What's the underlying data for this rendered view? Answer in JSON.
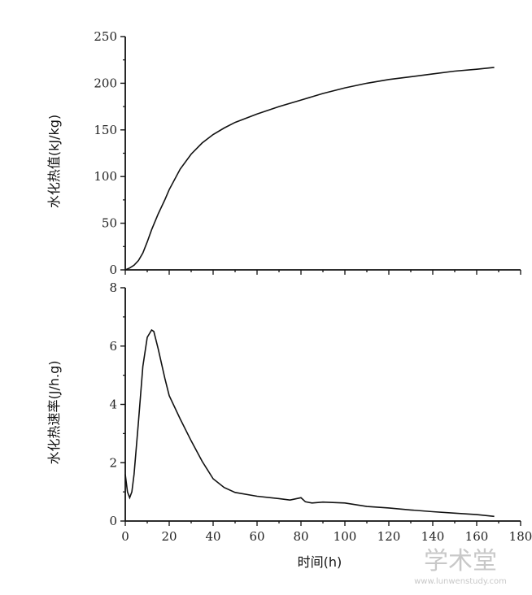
{
  "chart_data": [
    {
      "type": "line",
      "ylabel": "水化热值(kJ/kg)",
      "xlim": [
        0,
        180
      ],
      "ylim": [
        0,
        250
      ],
      "yticks": [
        "0",
        "50",
        "100",
        "150",
        "200",
        "250"
      ],
      "series": [
        {
          "color": "#111111",
          "x": [
            0,
            2,
            4,
            6,
            8,
            10,
            12,
            15,
            18,
            20,
            25,
            30,
            35,
            40,
            45,
            50,
            60,
            70,
            80,
            90,
            100,
            110,
            120,
            130,
            140,
            150,
            160,
            168
          ],
          "y": [
            0,
            2,
            5,
            10,
            18,
            30,
            43,
            60,
            75,
            86,
            108,
            124,
            136,
            145,
            152,
            158,
            167,
            175,
            182,
            189,
            195,
            200,
            204,
            207,
            210,
            213,
            215,
            217
          ]
        }
      ]
    },
    {
      "type": "line",
      "xlabel": "时间(h)",
      "ylabel": "水化热速率(J/h.g)",
      "xlim": [
        0,
        180
      ],
      "ylim": [
        0,
        8
      ],
      "xticks": [
        "0",
        "20",
        "40",
        "60",
        "80",
        "100",
        "120",
        "140",
        "160",
        "180"
      ],
      "yticks": [
        "0",
        "2",
        "4",
        "6",
        "8"
      ],
      "series": [
        {
          "color": "#111111",
          "x": [
            0,
            1,
            2,
            3,
            4,
            6,
            8,
            10,
            12,
            13,
            15,
            18,
            20,
            25,
            30,
            35,
            40,
            45,
            50,
            60,
            70,
            75,
            80,
            82,
            85,
            90,
            100,
            110,
            120,
            130,
            140,
            150,
            160,
            168
          ],
          "y": [
            1.6,
            1.0,
            0.8,
            1.0,
            1.6,
            3.4,
            5.3,
            6.3,
            6.55,
            6.5,
            5.9,
            4.9,
            4.3,
            3.5,
            2.75,
            2.05,
            1.45,
            1.15,
            0.98,
            0.85,
            0.77,
            0.72,
            0.8,
            0.66,
            0.62,
            0.65,
            0.62,
            0.5,
            0.45,
            0.38,
            0.32,
            0.27,
            0.22,
            0.16
          ]
        }
      ]
    }
  ],
  "watermark": {
    "title": "学术堂",
    "url": "www.lunwenstudy.com"
  }
}
